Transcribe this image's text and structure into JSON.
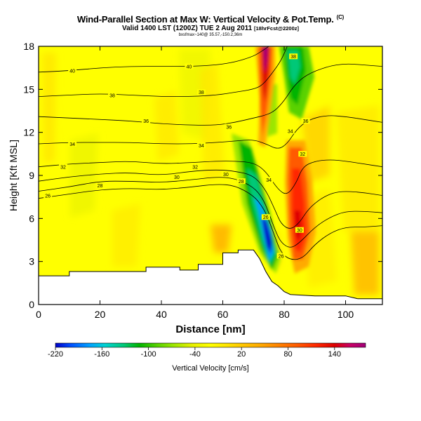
{
  "header": {
    "title": "Wind-Parallel Section at Max W: Vertical Velocity & Pot.Temp.",
    "title_mark": "(C)",
    "valid_line": "Valid 1400 LST (1200Z) TUE 2 Aug 2011",
    "forecast_tag": "[18hrFcst@2200z]",
    "source_line": "bxsfmax~140@ 35.57,-150.2,36m"
  },
  "chart_data": {
    "type": "heatmap",
    "xlabel": "Distance [nm]",
    "ylabel": "Height [Kft MSL]",
    "xlim": [
      0,
      112
    ],
    "ylim": [
      0,
      18
    ],
    "xticks": [
      0,
      20,
      40,
      60,
      80,
      100
    ],
    "yticks": [
      0,
      3,
      6,
      9,
      12,
      15,
      18
    ],
    "grid": false,
    "colorbar": {
      "label": "Vertical Velocity [cm/s]",
      "range": [
        -220,
        180
      ],
      "tick_values": [
        -220,
        -160,
        -100,
        -40,
        20,
        80,
        140
      ],
      "colors": [
        "#0000c8",
        "#0050ff",
        "#00a0ff",
        "#00d2d2",
        "#00c878",
        "#00b400",
        "#5ad200",
        "#9be600",
        "#e6f000",
        "#ffff00",
        "#ffe600",
        "#ffc800",
        "#ffaa00",
        "#ff8200",
        "#ff5a00",
        "#ff2800",
        "#dc0000",
        "#c80064",
        "#a00078"
      ]
    },
    "terrain": [
      [
        0,
        2.0
      ],
      [
        10,
        2.0
      ],
      [
        10,
        2.3
      ],
      [
        35,
        2.3
      ],
      [
        35,
        2.6
      ],
      [
        46,
        2.6
      ],
      [
        46,
        2.4
      ],
      [
        52,
        2.4
      ],
      [
        52,
        2.8
      ],
      [
        60,
        2.8
      ],
      [
        60,
        3.6
      ],
      [
        65,
        3.6
      ],
      [
        65,
        3.8
      ],
      [
        70,
        3.8
      ],
      [
        72,
        3.2
      ],
      [
        74,
        2.3
      ],
      [
        76,
        1.6
      ],
      [
        78,
        1.3
      ],
      [
        80,
        0.9
      ],
      [
        82,
        0.7
      ],
      [
        90,
        0.6
      ],
      [
        100,
        0.6
      ],
      [
        104,
        0.4
      ],
      [
        112,
        0.4
      ]
    ],
    "theta_contours": [
      {
        "level": 26,
        "label": "26",
        "points": [
          [
            0,
            7.4
          ],
          [
            10,
            7.7
          ],
          [
            20,
            8.0
          ],
          [
            30,
            8.1
          ],
          [
            40,
            8.0
          ],
          [
            50,
            8.2
          ],
          [
            58,
            8.4
          ],
          [
            64,
            8.3
          ],
          [
            70,
            7.6
          ],
          [
            73,
            6.8
          ],
          [
            75,
            5.9
          ],
          [
            77,
            4.7
          ],
          [
            79,
            3.6
          ],
          [
            82,
            3.1
          ],
          [
            86,
            3.2
          ],
          [
            90,
            4.2
          ],
          [
            95,
            5.0
          ],
          [
            100,
            5.4
          ],
          [
            106,
            5.4
          ],
          [
            112,
            5.5
          ]
        ]
      },
      {
        "level": 28,
        "label": "28",
        "points": [
          [
            0,
            7.9
          ],
          [
            10,
            8.2
          ],
          [
            20,
            8.6
          ],
          [
            30,
            8.6
          ],
          [
            40,
            8.5
          ],
          [
            50,
            8.7
          ],
          [
            58,
            8.9
          ],
          [
            64,
            8.8
          ],
          [
            70,
            8.2
          ],
          [
            73,
            7.4
          ],
          [
            75,
            6.4
          ],
          [
            77,
            5.2
          ],
          [
            79,
            4.3
          ],
          [
            82,
            3.9
          ],
          [
            85,
            4.3
          ],
          [
            90,
            5.4
          ],
          [
            95,
            6.1
          ],
          [
            100,
            6.5
          ],
          [
            106,
            6.5
          ],
          [
            112,
            6.4
          ]
        ]
      },
      {
        "level": 30,
        "label": "30",
        "points": [
          [
            0,
            8.6
          ],
          [
            10,
            8.9
          ],
          [
            20,
            9.1
          ],
          [
            30,
            9.2
          ],
          [
            40,
            9.0
          ],
          [
            50,
            9.3
          ],
          [
            58,
            9.4
          ],
          [
            64,
            9.3
          ],
          [
            70,
            9.0
          ],
          [
            74,
            8.0
          ],
          [
            77,
            6.6
          ],
          [
            79,
            5.6
          ],
          [
            82,
            5.2
          ],
          [
            85,
            5.7
          ],
          [
            88,
            6.7
          ],
          [
            92,
            7.4
          ],
          [
            96,
            7.8
          ],
          [
            100,
            7.9
          ],
          [
            106,
            7.8
          ],
          [
            112,
            7.6
          ]
        ]
      },
      {
        "level": 32,
        "label": "32",
        "points": [
          [
            0,
            9.6
          ],
          [
            10,
            9.8
          ],
          [
            20,
            9.9
          ],
          [
            30,
            10.0
          ],
          [
            40,
            9.8
          ],
          [
            50,
            9.9
          ],
          [
            58,
            10.0
          ],
          [
            64,
            10.0
          ],
          [
            70,
            9.9
          ],
          [
            74,
            9.3
          ],
          [
            78,
            8.0
          ],
          [
            81,
            7.6
          ],
          [
            84,
            8.5
          ],
          [
            86,
            9.6
          ],
          [
            90,
            10.0
          ],
          [
            95,
            10.1
          ],
          [
            100,
            10.0
          ],
          [
            106,
            9.8
          ],
          [
            112,
            9.6
          ]
        ]
      },
      {
        "level": 34,
        "label": "34",
        "points": [
          [
            0,
            11.2
          ],
          [
            10,
            11.3
          ],
          [
            20,
            11.3
          ],
          [
            30,
            11.3
          ],
          [
            40,
            11.2
          ],
          [
            50,
            11.2
          ],
          [
            58,
            11.3
          ],
          [
            64,
            11.4
          ],
          [
            70,
            11.5
          ],
          [
            74,
            11.2
          ],
          [
            78,
            10.8
          ],
          [
            81,
            11.2
          ],
          [
            84,
            12.2
          ],
          [
            88,
            12.9
          ],
          [
            94,
            13.2
          ],
          [
            100,
            13.1
          ],
          [
            106,
            12.9
          ],
          [
            112,
            12.7
          ]
        ]
      },
      {
        "level": 36,
        "label": "36",
        "points": [
          [
            0,
            13.1
          ],
          [
            10,
            13.0
          ],
          [
            20,
            12.9
          ],
          [
            30,
            12.8
          ],
          [
            40,
            12.6
          ],
          [
            50,
            12.5
          ],
          [
            58,
            12.5
          ],
          [
            64,
            12.7
          ],
          [
            70,
            13.0
          ],
          [
            74,
            13.2
          ],
          [
            77,
            13.5
          ],
          [
            80,
            14.2
          ],
          [
            83,
            15.2
          ],
          [
            87,
            16.0
          ],
          [
            94,
            16.6
          ],
          [
            100,
            16.8
          ],
          [
            106,
            16.7
          ],
          [
            112,
            16.6
          ]
        ]
      },
      {
        "level": 38,
        "label": "38",
        "points": [
          [
            0,
            14.5
          ],
          [
            10,
            14.6
          ],
          [
            20,
            14.7
          ],
          [
            30,
            14.6
          ],
          [
            40,
            14.5
          ],
          [
            50,
            14.5
          ],
          [
            58,
            14.6
          ],
          [
            64,
            14.8
          ],
          [
            70,
            15.0
          ],
          [
            73,
            15.3
          ],
          [
            76,
            16.1
          ],
          [
            79,
            17.0
          ],
          [
            81,
            18.0
          ]
        ]
      },
      {
        "level": 40,
        "label": "40",
        "points": [
          [
            0,
            16.2
          ],
          [
            10,
            16.3
          ],
          [
            20,
            16.5
          ],
          [
            30,
            16.6
          ],
          [
            40,
            16.6
          ],
          [
            50,
            16.6
          ],
          [
            58,
            16.7
          ],
          [
            64,
            16.9
          ],
          [
            70,
            17.3
          ],
          [
            73,
            17.7
          ],
          [
            75,
            18.0
          ]
        ]
      }
    ],
    "contour_labels": [
      {
        "text": "26",
        "x": 3,
        "y": 7.6
      },
      {
        "text": "28",
        "x": 20,
        "y": 8.3
      },
      {
        "text": "30",
        "x": 45,
        "y": 8.9
      },
      {
        "text": "30",
        "x": 61,
        "y": 9.1
      },
      {
        "text": "28",
        "x": 66,
        "y": 8.6
      },
      {
        "text": "32",
        "x": 8,
        "y": 9.6
      },
      {
        "text": "32",
        "x": 51,
        "y": 9.6
      },
      {
        "text": "34",
        "x": 11,
        "y": 11.2
      },
      {
        "text": "34",
        "x": 53,
        "y": 11.1
      },
      {
        "text": "34",
        "x": 75,
        "y": 8.7
      },
      {
        "text": "34",
        "x": 82,
        "y": 12.1
      },
      {
        "text": "32",
        "x": 86,
        "y": 10.5
      },
      {
        "text": "36",
        "x": 35,
        "y": 12.8
      },
      {
        "text": "36",
        "x": 62,
        "y": 12.4
      },
      {
        "text": "36",
        "x": 87,
        "y": 12.8
      },
      {
        "text": "38",
        "x": 24,
        "y": 14.6
      },
      {
        "text": "38",
        "x": 53,
        "y": 14.8
      },
      {
        "text": "38",
        "x": 83,
        "y": 17.3
      },
      {
        "text": "40",
        "x": 11,
        "y": 16.3
      },
      {
        "text": "40",
        "x": 49,
        "y": 16.6
      },
      {
        "text": "30",
        "x": 85,
        "y": 5.2
      },
      {
        "text": "26",
        "x": 79,
        "y": 3.4
      },
      {
        "text": "26",
        "x": 74,
        "y": 6.1
      }
    ]
  }
}
